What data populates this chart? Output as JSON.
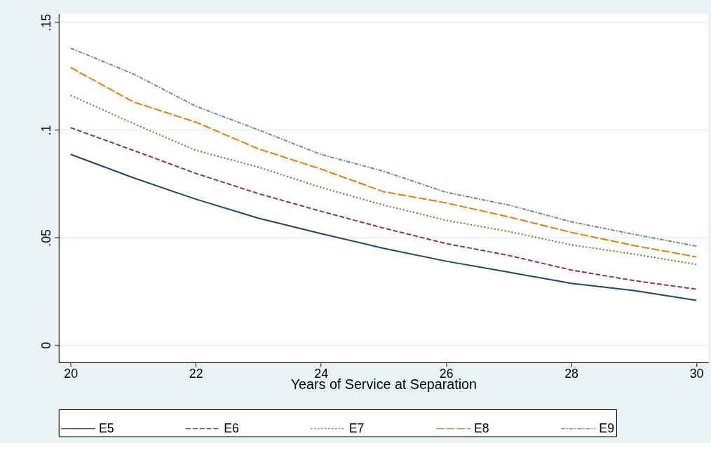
{
  "chart_data": {
    "type": "line",
    "xlabel": "Years of Service at Separation",
    "x": [
      20,
      21,
      22,
      23,
      24,
      25,
      26,
      27,
      28,
      29,
      30
    ],
    "series": [
      {
        "name": "E5",
        "color": "#1a476f",
        "line_style": "solid",
        "values": [
          0.0886,
          0.0778,
          0.0678,
          0.059,
          0.0518,
          0.045,
          0.039,
          0.0339,
          0.0287,
          0.0254,
          0.0208
        ]
      },
      {
        "name": "E6",
        "color": "#90353b",
        "line_style": "dashed",
        "values": [
          0.101,
          0.0905,
          0.0798,
          0.0704,
          0.0622,
          0.0544,
          0.0472,
          0.0417,
          0.0349,
          0.03,
          0.026
        ]
      },
      {
        "name": "E7",
        "color": "#55752f",
        "line_style": "dotted",
        "values": [
          0.116,
          0.103,
          0.0905,
          0.0827,
          0.0733,
          0.0651,
          0.058,
          0.0528,
          0.0466,
          0.0423,
          0.0375
        ]
      },
      {
        "name": "E8",
        "color": "#e37e00",
        "line_style": "dashed",
        "values": [
          0.129,
          0.113,
          0.1036,
          0.0912,
          0.0818,
          0.0713,
          0.0661,
          0.0596,
          0.0524,
          0.0463,
          0.041
        ]
      },
      {
        "name": "E9",
        "color": "#6e8e84",
        "line_style": "dotted",
        "values": [
          0.138,
          0.126,
          0.111,
          0.1,
          0.0886,
          0.0808,
          0.071,
          0.0651,
          0.0573,
          0.0515,
          0.046
        ]
      }
    ],
    "xlim": [
      19.81,
      30.19
    ],
    "xticks": [
      20,
      22,
      24,
      26,
      28,
      30
    ],
    "ylim": [
      -0.008,
      0.154
    ],
    "yticks": [
      {
        "value": 0,
        "label": "0"
      },
      {
        "value": 0.05,
        "label": ".05"
      },
      {
        "value": 0.1,
        "label": ".1"
      },
      {
        "value": 0.15,
        "label": ".15"
      }
    ],
    "grid": "y",
    "legend": "bottom",
    "marker": "none"
  }
}
